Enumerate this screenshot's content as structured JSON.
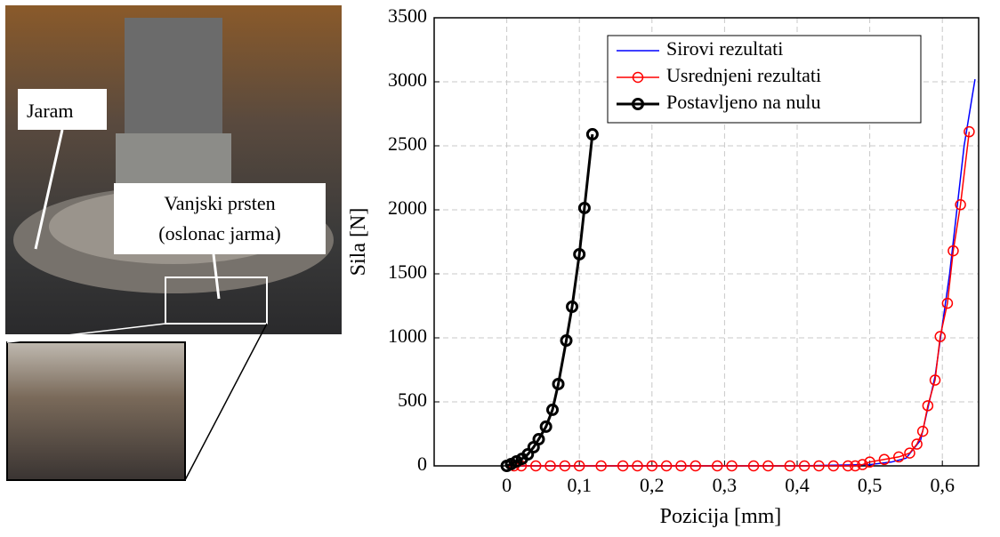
{
  "photo": {
    "labels": [
      "Jaram",
      "Vanjski prsten",
      "(oslonac jarma)"
    ]
  },
  "chart_data": {
    "type": "line",
    "xlabel": "Pozicija [mm]",
    "ylabel": "Sila [N]",
    "xlim": [
      -0.1,
      0.65
    ],
    "ylim": [
      0,
      3500
    ],
    "xticks": [
      0,
      {
        "value": 0.1,
        "label": "0,1"
      },
      {
        "value": 0.2,
        "label": "0,2"
      },
      {
        "value": 0.3,
        "label": "0,3"
      },
      {
        "value": 0.4,
        "label": "0,4"
      },
      {
        "value": 0.5,
        "label": "0,5"
      },
      {
        "value": 0.6,
        "label": "0,6"
      }
    ],
    "yticks": [
      0,
      500,
      1000,
      1500,
      2000,
      2500,
      3000,
      3500
    ],
    "grid": true,
    "legend": "upper right",
    "series": [
      {
        "name": "Sirovi rezultati",
        "color": "#0000ff",
        "marker": "none",
        "x": [
          0,
          0.1,
          0.2,
          0.3,
          0.4,
          0.5,
          0.53,
          0.55,
          0.57,
          0.59,
          0.61,
          0.63,
          0.645
        ],
        "values": [
          0,
          0,
          0,
          0,
          0,
          10,
          30,
          60,
          200,
          700,
          1500,
          2500,
          3020
        ]
      },
      {
        "name": "Usrednjeni rezultati",
        "color": "#ff0000",
        "marker": "circle",
        "x": [
          0,
          0.01,
          0.02,
          0.04,
          0.06,
          0.08,
          0.1,
          0.13,
          0.16,
          0.18,
          0.2,
          0.22,
          0.24,
          0.26,
          0.29,
          0.31,
          0.34,
          0.36,
          0.39,
          0.41,
          0.43,
          0.45,
          0.47,
          0.48,
          0.49,
          0.5,
          0.52,
          0.54,
          0.555,
          0.565,
          0.573,
          0.58,
          0.59,
          0.597,
          0.607,
          0.615,
          0.625,
          0.637
        ],
        "values": [
          0,
          0,
          0,
          0,
          0,
          0,
          0,
          0,
          0,
          0,
          0,
          0,
          0,
          0,
          0,
          0,
          0,
          0,
          0,
          0,
          0,
          0,
          0,
          0,
          10,
          30,
          50,
          70,
          100,
          170,
          270,
          470,
          670,
          1010,
          1270,
          1680,
          2040,
          2610
        ]
      },
      {
        "name": "Postavljeno na nulu",
        "color": "#000000",
        "marker": "circle",
        "x": [
          0,
          0.006,
          0.0135,
          0.021,
          0.029,
          0.037,
          0.044,
          0.054,
          0.063,
          0.071,
          0.082,
          0.09,
          0.1,
          0.107,
          0.118
        ],
        "values": [
          0,
          14,
          35,
          55,
          90,
          146,
          208,
          306,
          438,
          639,
          979,
          1243,
          1653,
          2014,
          2590
        ]
      }
    ]
  }
}
